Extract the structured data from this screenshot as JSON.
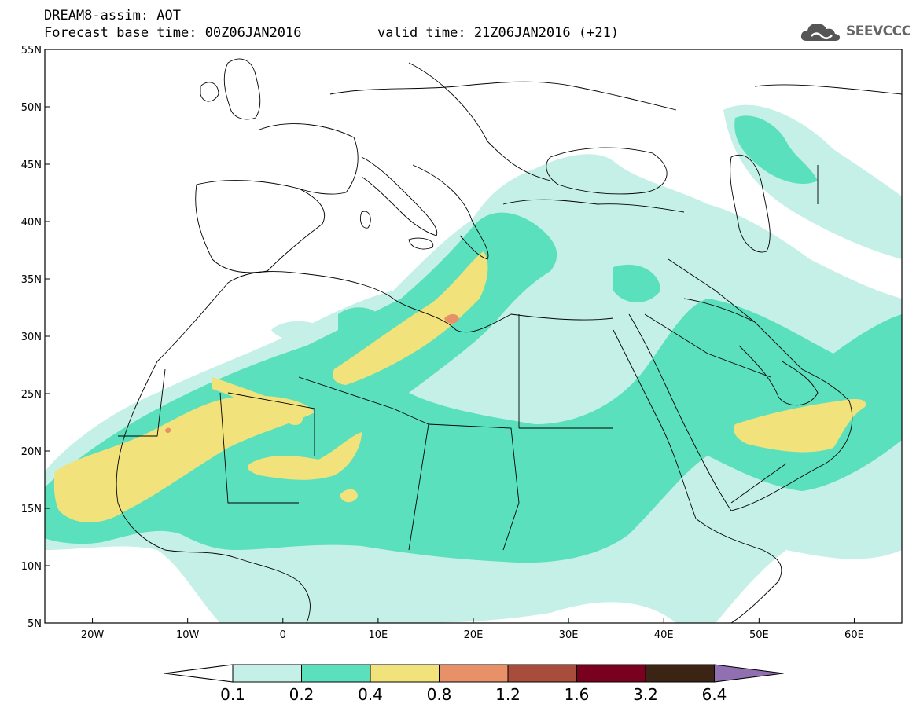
{
  "header": {
    "title": "DREAM8-assim: AOT",
    "base_time": "Forecast base time: 00Z06JAN2016",
    "valid_time": "valid time: 21Z06JAN2016 (+21)"
  },
  "logo": {
    "text": "SEEVCCC",
    "icon": "cloud-icon"
  },
  "map": {
    "lon_range": [
      -25,
      65
    ],
    "lat_range": [
      5,
      55
    ],
    "lon_ticks": [
      "20W",
      "10W",
      "0",
      "10E",
      "20E",
      "30E",
      "40E",
      "50E",
      "60E"
    ],
    "lat_ticks": [
      "55N",
      "50N",
      "45N",
      "40N",
      "35N",
      "30N",
      "25N",
      "20N",
      "15N",
      "10N",
      "5N"
    ],
    "variable": "AOT"
  },
  "colorbar": {
    "labels": [
      "0.1",
      "0.2",
      "0.4",
      "0.8",
      "1.2",
      "1.6",
      "3.2",
      "6.4"
    ],
    "colors": [
      "#c4f0e8",
      "#5ae0bc",
      "#f2e27c",
      "#e89068",
      "#a84c3c",
      "#7a0020",
      "#3c2414",
      "#9070b0"
    ]
  },
  "palette": {
    "aot_01_02": "#c4f0e8",
    "aot_02_04": "#5ae0bc",
    "aot_04_08": "#f2e27c",
    "aot_08_12": "#e89068",
    "coast": "#000000"
  }
}
